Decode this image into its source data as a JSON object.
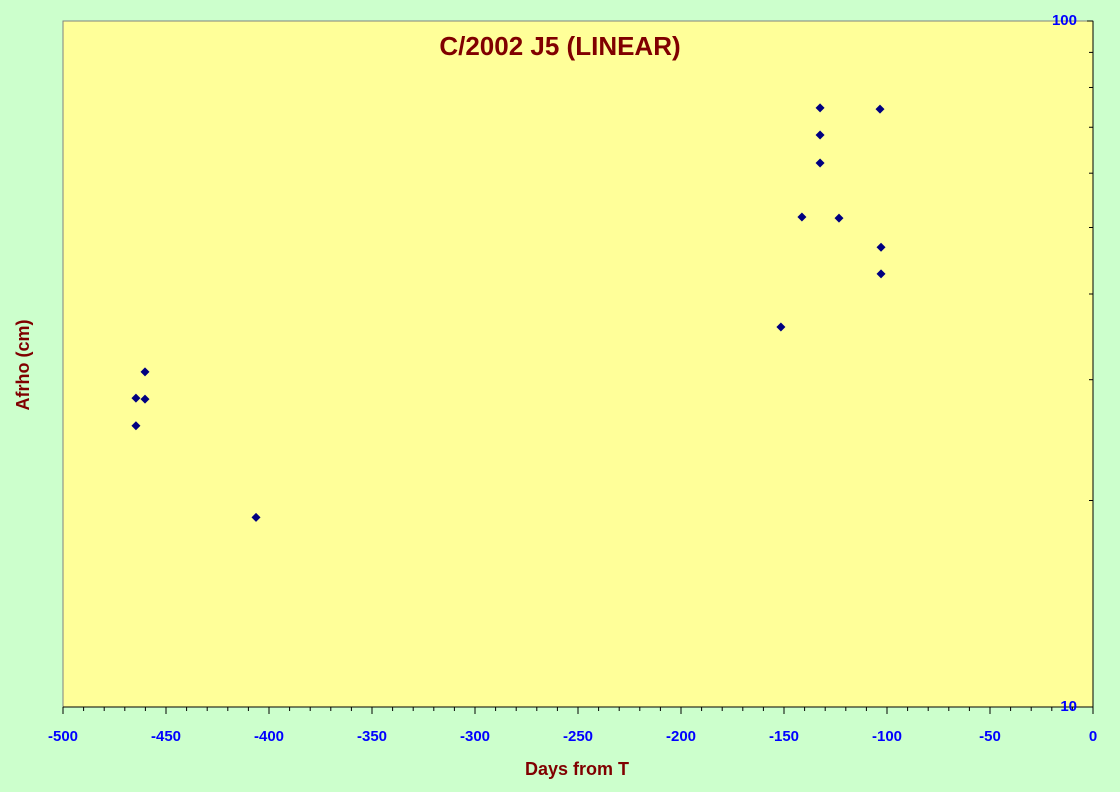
{
  "chart_data": {
    "type": "scatter",
    "title": "C/2002 J5 (LINEAR)",
    "x_label": "Days from T",
    "y_label": "Afrho (cm)",
    "series": [
      {
        "color": "#000080",
        "x": [
          -464.6,
          -464.6,
          -460.2,
          -460.2,
          -406.3,
          -151.5,
          -141.3,
          -123.3,
          -132.5,
          -132.5,
          -132.5,
          -103.4,
          -102.9,
          -102.9
        ],
        "values": [
          25.7,
          28.2,
          28.1,
          30.8,
          18.9,
          35.8,
          51.8,
          51.6,
          74.7,
          68.2,
          62.1,
          74.4,
          46.8,
          42.8
        ]
      }
    ],
    "xlim": [
      -500,
      0
    ],
    "xticks": [
      -500,
      -450,
      -400,
      -350,
      -300,
      -250,
      -200,
      -150,
      -100,
      -50,
      0
    ],
    "ylim": [
      10,
      100
    ],
    "yticks": [
      10,
      100
    ],
    "yminorticks": [
      20,
      30,
      40,
      50,
      60,
      70,
      80,
      90
    ],
    "ylog": true,
    "yaxis_side": "right"
  }
}
